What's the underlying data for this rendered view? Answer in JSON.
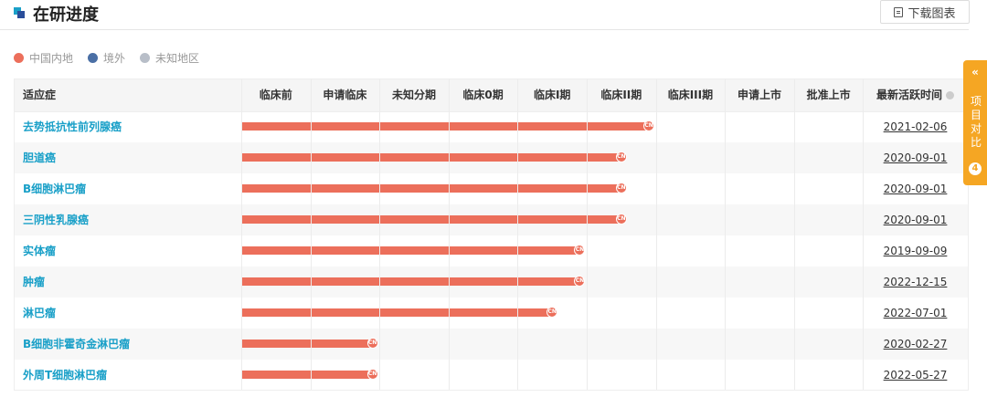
{
  "header": {
    "title": "在研进度",
    "download_label": "下载图表"
  },
  "legend": [
    {
      "label": "中国内地",
      "color": "#ec6f5b"
    },
    {
      "label": "境外",
      "color": "#4a6fa5"
    },
    {
      "label": "未知地区",
      "color": "#b8bec8"
    }
  ],
  "table": {
    "col_indication": "适应症",
    "col_latest": "最新活跃时间"
  },
  "side_tab": {
    "label": "项目对比",
    "count": "4",
    "chevron": "«"
  },
  "chart_data": {
    "type": "bar",
    "orientation": "horizontal",
    "categories": [
      "临床前",
      "申请临床",
      "未知分期",
      "临床0期",
      "临床I期",
      "临床II期",
      "临床III期",
      "申请上市",
      "批准上市"
    ],
    "rows": [
      {
        "indication": "去势抵抗性前列腺癌",
        "stage": 5.9,
        "region": "CN",
        "date": "2021-02-06"
      },
      {
        "indication": "胆道癌",
        "stage": 5.5,
        "region": "CN",
        "date": "2020-09-01"
      },
      {
        "indication": "B细胞淋巴瘤",
        "stage": 5.5,
        "region": "CN",
        "date": "2020-09-01"
      },
      {
        "indication": "三阴性乳腺癌",
        "stage": 5.5,
        "region": "CN",
        "date": "2020-09-01"
      },
      {
        "indication": "实体瘤",
        "stage": 4.9,
        "region": "CN",
        "date": "2019-09-09"
      },
      {
        "indication": "肿瘤",
        "stage": 4.9,
        "region": "CN",
        "date": "2022-12-15"
      },
      {
        "indication": "淋巴瘤",
        "stage": 4.5,
        "region": "CN",
        "date": "2022-07-01"
      },
      {
        "indication": "B细胞非霍奇金淋巴瘤",
        "stage": 1.9,
        "region": "CN",
        "date": "2020-02-27"
      },
      {
        "indication": "外周T细胞淋巴瘤",
        "stage": 1.9,
        "region": "CN",
        "date": "2022-05-27"
      }
    ]
  }
}
